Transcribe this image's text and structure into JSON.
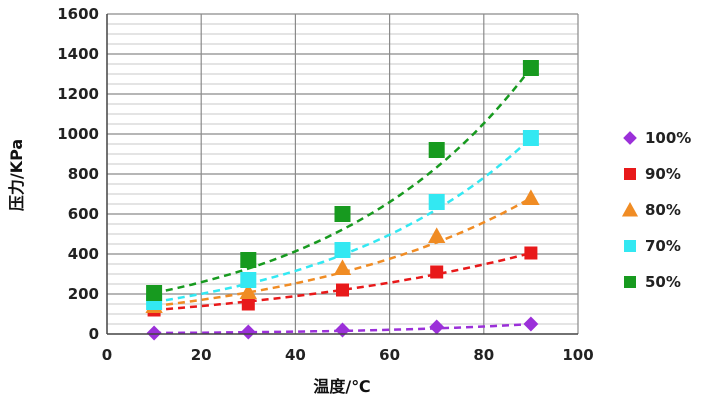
{
  "chart_data": {
    "type": "scatter",
    "title": "",
    "xlabel": "温度/℃",
    "ylabel": "压力/KPa",
    "xlim": [
      0,
      100
    ],
    "ylim": [
      0,
      1600
    ],
    "xticks": [
      0,
      20,
      40,
      60,
      80,
      100
    ],
    "yticks": [
      0,
      200,
      400,
      600,
      800,
      1000,
      1200,
      1400,
      1600
    ],
    "grid": true,
    "trendlines": "exponential, dashed",
    "legend_position": "right",
    "series": [
      {
        "name": "100%",
        "color": "#9B30D9",
        "marker": "diamond",
        "x": [
          10,
          30,
          50,
          70,
          90
        ],
        "y": [
          5,
          10,
          20,
          35,
          50
        ]
      },
      {
        "name": "90%",
        "color": "#E8191A",
        "marker": "square",
        "x": [
          10,
          30,
          50,
          70,
          90
        ],
        "y": [
          120,
          150,
          220,
          310,
          405
        ]
      },
      {
        "name": "80%",
        "color": "#F08C24",
        "marker": "triangle",
        "x": [
          10,
          30,
          50,
          70,
          90
        ],
        "y": [
          140,
          210,
          330,
          490,
          680
        ]
      },
      {
        "name": "70%",
        "color": "#33E8F2",
        "marker": "square",
        "x": [
          10,
          30,
          50,
          70,
          90
        ],
        "y": [
          160,
          270,
          420,
          660,
          980
        ]
      },
      {
        "name": "50%",
        "color": "#179A1F",
        "marker": "square",
        "x": [
          10,
          30,
          50,
          70,
          90
        ],
        "y": [
          205,
          370,
          600,
          920,
          1330
        ]
      }
    ]
  }
}
